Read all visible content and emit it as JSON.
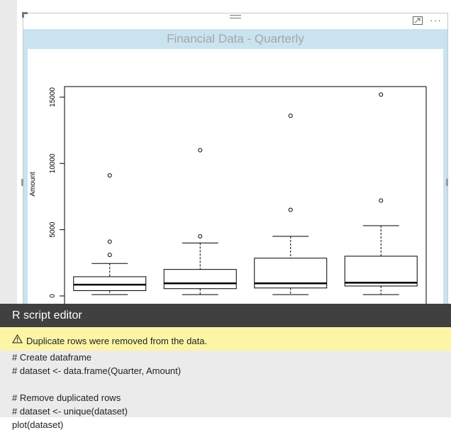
{
  "visual": {
    "title": "Financial Data - Quarterly",
    "icons": [
      "focus-mode-icon",
      "more-options-icon"
    ],
    "more_glyph": "···"
  },
  "chart_data": {
    "type": "boxplot",
    "ylabel": "Amount",
    "ylim": [
      0,
      15800
    ],
    "yticks": [
      0,
      5000,
      10000,
      15000
    ],
    "ytick_labels": [
      "0",
      "5000",
      "10000",
      "15000"
    ],
    "grid": false,
    "boxes": [
      {
        "min": 100,
        "q1": 400,
        "median": 850,
        "q3": 1450,
        "max": 2450,
        "outliers": [
          3100,
          4100,
          9100
        ]
      },
      {
        "min": 100,
        "q1": 550,
        "median": 950,
        "q3": 2000,
        "max": 4000,
        "outliers": [
          4500,
          11000
        ]
      },
      {
        "min": 100,
        "q1": 600,
        "median": 950,
        "q3": 2850,
        "max": 4500,
        "outliers": [
          6500,
          13600
        ]
      },
      {
        "min": 100,
        "q1": 750,
        "median": 1000,
        "q3": 3000,
        "max": 5300,
        "outliers": [
          7200,
          15200
        ]
      }
    ]
  },
  "editor": {
    "title": "R script editor",
    "warning": "Duplicate rows were removed from the data.",
    "code_lines": [
      "# Create dataframe",
      "# dataset <- data.frame(Quarter, Amount)",
      "",
      "# Remove duplicated rows",
      "# dataset <- unique(dataset)"
    ],
    "last_line": "plot(dataset)"
  }
}
